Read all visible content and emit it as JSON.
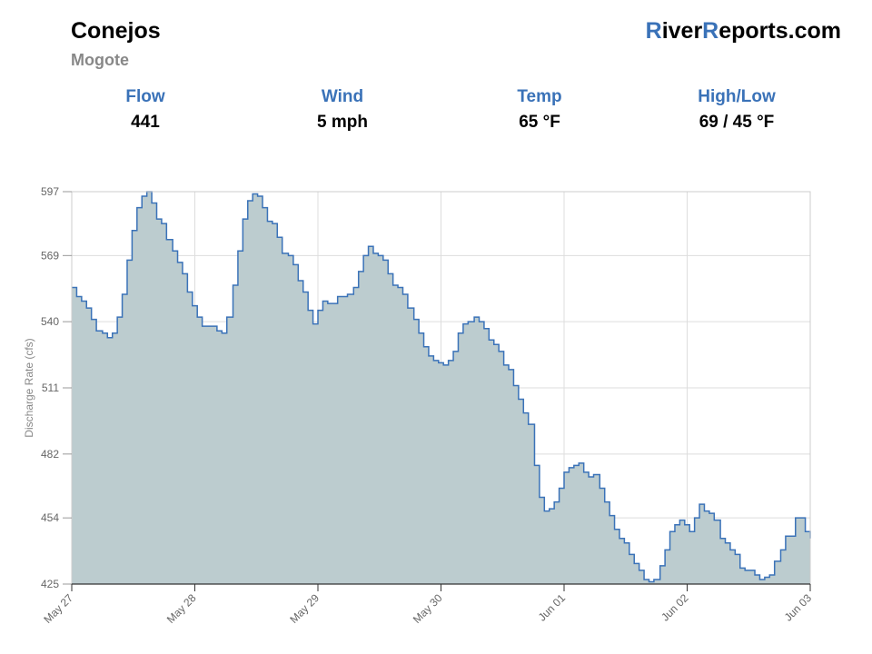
{
  "header": {
    "title": "Conejos",
    "subtitle": "Mogote",
    "brand": {
      "r1": "R",
      "part1": "iver",
      "r2": "R",
      "part2": "eports.com"
    }
  },
  "stats": [
    {
      "label": "Flow",
      "value": "441"
    },
    {
      "label": "Wind",
      "value": "5 mph"
    },
    {
      "label": "Temp",
      "value": "65 °F"
    },
    {
      "label": "High/Low",
      "value": "69 / 45 °F"
    }
  ],
  "colors": {
    "accent": "#3a72b8",
    "line": "#3a72b8",
    "fill": "#bccccf",
    "grid": "#dddddd"
  },
  "chart_data": {
    "type": "area",
    "step": true,
    "ylabel": "Discharge Rate (cfs)",
    "ylim": [
      425,
      597
    ],
    "yticks": [
      425,
      454,
      482,
      511,
      540,
      569,
      597
    ],
    "xlim": [
      0,
      6
    ],
    "xticks": [
      {
        "x": 0,
        "label": "May 27"
      },
      {
        "x": 1,
        "label": "May 28"
      },
      {
        "x": 2,
        "label": "May 29"
      },
      {
        "x": 3,
        "label": "May 30"
      },
      {
        "x": 4,
        "label": "Jun 01"
      },
      {
        "x": 5,
        "label": "Jun 02"
      },
      {
        "x": 6,
        "label": "Jun 03"
      }
    ],
    "grid": true,
    "series": [
      {
        "values": [
          [
            0.0,
            555
          ],
          [
            0.04,
            551
          ],
          [
            0.08,
            549
          ],
          [
            0.12,
            546
          ],
          [
            0.16,
            541
          ],
          [
            0.2,
            536
          ],
          [
            0.25,
            535
          ],
          [
            0.29,
            533
          ],
          [
            0.33,
            535
          ],
          [
            0.37,
            542
          ],
          [
            0.41,
            552
          ],
          [
            0.45,
            567
          ],
          [
            0.49,
            580
          ],
          [
            0.53,
            590
          ],
          [
            0.57,
            595
          ],
          [
            0.61,
            597
          ],
          [
            0.65,
            592
          ],
          [
            0.69,
            585
          ],
          [
            0.73,
            583
          ],
          [
            0.77,
            576
          ],
          [
            0.82,
            571
          ],
          [
            0.86,
            566
          ],
          [
            0.9,
            561
          ],
          [
            0.94,
            553
          ],
          [
            0.98,
            547
          ],
          [
            1.02,
            542
          ],
          [
            1.06,
            538
          ],
          [
            1.1,
            538
          ],
          [
            1.14,
            538
          ],
          [
            1.18,
            536
          ],
          [
            1.22,
            535
          ],
          [
            1.26,
            542
          ],
          [
            1.31,
            556
          ],
          [
            1.35,
            571
          ],
          [
            1.39,
            585
          ],
          [
            1.43,
            593
          ],
          [
            1.47,
            596
          ],
          [
            1.51,
            595
          ],
          [
            1.55,
            590
          ],
          [
            1.59,
            584
          ],
          [
            1.63,
            583
          ],
          [
            1.67,
            577
          ],
          [
            1.71,
            570
          ],
          [
            1.76,
            569
          ],
          [
            1.8,
            565
          ],
          [
            1.84,
            558
          ],
          [
            1.88,
            553
          ],
          [
            1.92,
            545
          ],
          [
            1.96,
            539
          ],
          [
            2.0,
            545
          ],
          [
            2.04,
            549
          ],
          [
            2.08,
            548
          ],
          [
            2.12,
            548
          ],
          [
            2.16,
            551
          ],
          [
            2.2,
            551
          ],
          [
            2.24,
            552
          ],
          [
            2.29,
            555
          ],
          [
            2.33,
            562
          ],
          [
            2.37,
            569
          ],
          [
            2.41,
            573
          ],
          [
            2.45,
            570
          ],
          [
            2.49,
            569
          ],
          [
            2.53,
            567
          ],
          [
            2.57,
            561
          ],
          [
            2.61,
            556
          ],
          [
            2.65,
            555
          ],
          [
            2.69,
            552
          ],
          [
            2.73,
            546
          ],
          [
            2.78,
            541
          ],
          [
            2.82,
            535
          ],
          [
            2.86,
            529
          ],
          [
            2.9,
            525
          ],
          [
            2.94,
            523
          ],
          [
            2.98,
            522
          ],
          [
            3.02,
            521
          ],
          [
            3.06,
            523
          ],
          [
            3.1,
            527
          ],
          [
            3.14,
            535
          ],
          [
            3.18,
            539
          ],
          [
            3.22,
            540
          ],
          [
            3.27,
            542
          ],
          [
            3.31,
            540
          ],
          [
            3.35,
            537
          ],
          [
            3.39,
            532
          ],
          [
            3.43,
            530
          ],
          [
            3.47,
            527
          ],
          [
            3.51,
            521
          ],
          [
            3.55,
            519
          ],
          [
            3.59,
            512
          ],
          [
            3.63,
            506
          ],
          [
            3.67,
            500
          ],
          [
            3.71,
            495
          ],
          [
            3.76,
            477
          ],
          [
            3.8,
            463
          ],
          [
            3.84,
            457
          ],
          [
            3.88,
            458
          ],
          [
            3.92,
            461
          ],
          [
            3.96,
            467
          ],
          [
            4.0,
            474
          ],
          [
            4.04,
            476
          ],
          [
            4.08,
            477
          ],
          [
            4.12,
            478
          ],
          [
            4.16,
            474
          ],
          [
            4.2,
            472
          ],
          [
            4.24,
            473
          ],
          [
            4.29,
            467
          ],
          [
            4.33,
            461
          ],
          [
            4.37,
            455
          ],
          [
            4.41,
            449
          ],
          [
            4.45,
            445
          ],
          [
            4.49,
            443
          ],
          [
            4.53,
            438
          ],
          [
            4.57,
            434
          ],
          [
            4.61,
            431
          ],
          [
            4.65,
            427
          ],
          [
            4.69,
            426
          ],
          [
            4.73,
            427
          ],
          [
            4.78,
            433
          ],
          [
            4.82,
            440
          ],
          [
            4.86,
            448
          ],
          [
            4.9,
            451
          ],
          [
            4.94,
            453
          ],
          [
            4.98,
            451
          ],
          [
            5.02,
            448
          ],
          [
            5.06,
            454
          ],
          [
            5.1,
            460
          ],
          [
            5.14,
            457
          ],
          [
            5.18,
            456
          ],
          [
            5.22,
            453
          ],
          [
            5.27,
            445
          ],
          [
            5.31,
            443
          ],
          [
            5.35,
            440
          ],
          [
            5.39,
            438
          ],
          [
            5.43,
            432
          ],
          [
            5.47,
            431
          ],
          [
            5.51,
            431
          ],
          [
            5.55,
            429
          ],
          [
            5.59,
            427
          ],
          [
            5.63,
            428
          ],
          [
            5.67,
            429
          ],
          [
            5.71,
            435
          ],
          [
            5.76,
            440
          ],
          [
            5.8,
            446
          ],
          [
            5.84,
            446
          ],
          [
            5.88,
            454
          ],
          [
            5.92,
            454
          ],
          [
            5.96,
            448
          ],
          [
            6.0,
            445
          ]
        ]
      }
    ]
  }
}
